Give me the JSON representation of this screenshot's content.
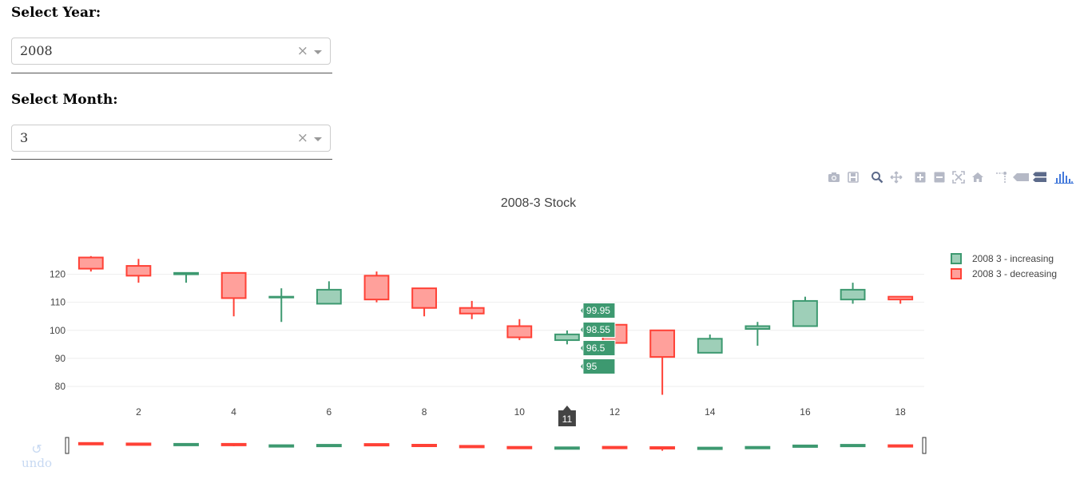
{
  "filters": {
    "year_label": "Select Year:",
    "year_value": "2008",
    "month_label": "Select Month:",
    "month_value": "3",
    "clear_symbol": "×"
  },
  "modebar": [
    "camera-icon",
    "save-icon",
    "zoom-icon",
    "pan-icon",
    "zoom-in-icon",
    "zoom-out-icon",
    "autoscale-icon",
    "reset-axes-icon",
    "spike-lines-icon",
    "hover-closest-icon",
    "hover-compare-icon",
    "plotly-logo-icon"
  ],
  "undo": {
    "label": "undo",
    "symbol": "↺"
  },
  "colors": {
    "increasing": "#3d9970",
    "increasing_fill": "#9ecfb8",
    "decreasing": "#ff4136",
    "decreasing_fill": "#ffa09b",
    "grid": "#eeeeee",
    "text": "#444444"
  },
  "chart_data": {
    "type": "candlestick",
    "title": "2008-3 Stock",
    "x": [
      1,
      2,
      3,
      4,
      5,
      6,
      7,
      8,
      9,
      10,
      11,
      12,
      13,
      14,
      15,
      16,
      17,
      18
    ],
    "open": [
      126,
      123,
      120,
      120.5,
      112,
      109.5,
      119.5,
      115,
      108,
      101.5,
      96.5,
      102,
      100,
      92,
      100.5,
      101.5,
      111,
      112
    ],
    "high": [
      126.5,
      125.5,
      120.5,
      120.5,
      115,
      117.5,
      121,
      115,
      110.5,
      104,
      99.95,
      102,
      100,
      98.5,
      103,
      112,
      117,
      112
    ],
    "low": [
      121,
      117,
      117,
      105,
      103,
      109.5,
      110,
      105,
      104,
      96.5,
      95,
      94.5,
      77,
      92,
      94.5,
      101.5,
      109.5,
      109.5
    ],
    "close": [
      122,
      119.5,
      120.5,
      111.5,
      112,
      114.5,
      111,
      108,
      106,
      97.5,
      98.55,
      95.5,
      90.5,
      97,
      101.5,
      110.5,
      114.5,
      111
    ],
    "xticks": [
      2,
      4,
      6,
      8,
      10,
      12,
      14,
      16,
      18
    ],
    "yticks": [
      80,
      90,
      100,
      110,
      120
    ],
    "xlim": [
      0.5,
      18.5
    ],
    "ylim": [
      76,
      129
    ],
    "legend": [
      "2008 3 - increasing",
      "2008 3 - decreasing"
    ],
    "legend_position": "top-right",
    "hover": {
      "x": 11,
      "labels": [
        "99.95",
        "98.55",
        "96.5",
        "95"
      ]
    },
    "rangeslider": true,
    "grid": true
  }
}
